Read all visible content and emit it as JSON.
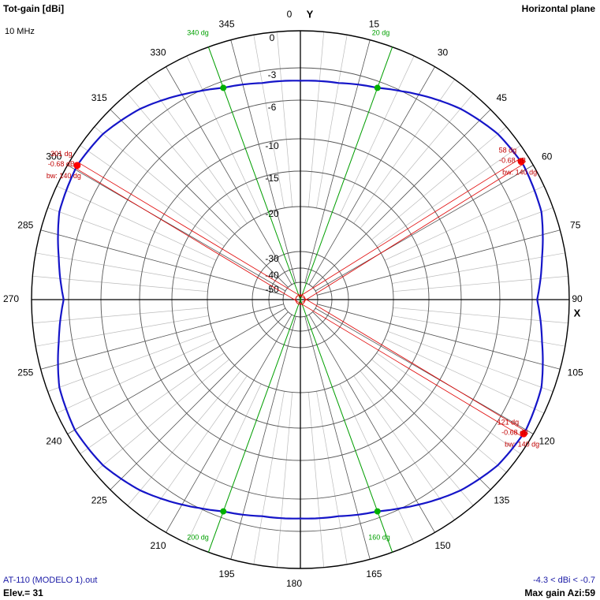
{
  "header": {
    "left_title": "Tot-gain [dBi]",
    "frequency": "10 MHz",
    "right_title": "Horizontal plane"
  },
  "footer": {
    "file": "AT-110 (MODELO 1).out",
    "elevation": "Elev.= 31",
    "range": "-4.3 < dBi < -0.7",
    "max_gain": "Max gain Azi:59"
  },
  "colors": {
    "pattern": "#1515c8",
    "lobe_lines": "#e00000",
    "beamwidth_lines": "#00a000",
    "grid": "#555555",
    "grid_light": "#bbbbbb"
  },
  "chart_data": {
    "type": "polar",
    "title": "Tot-gain [dBi]",
    "axis_labels": {
      "y": "Y",
      "x": "X"
    },
    "azimuth_ticks": [
      "0",
      "15",
      "30",
      "45",
      "60",
      "75",
      "90",
      "105",
      "120",
      "135",
      "150",
      "165",
      "180",
      "195",
      "210",
      "225",
      "240",
      "255",
      "270",
      "285",
      "300",
      "315",
      "330",
      "345"
    ],
    "radial_ticks": [
      "0",
      "-3",
      "-6",
      "-10",
      "-15",
      "-20",
      "-30",
      "-40",
      "-50"
    ],
    "radial_values": [
      0,
      -3,
      -6,
      -10,
      -15,
      -20,
      -30,
      -40,
      -50
    ],
    "series": [
      {
        "azimuth_deg": [
          0,
          10,
          20,
          30,
          40,
          50,
          59,
          70,
          80,
          90,
          100,
          110,
          120,
          130,
          140,
          150,
          160,
          170,
          180,
          190,
          200,
          210,
          220,
          230,
          240,
          250,
          260,
          270,
          280,
          290,
          301,
          310,
          320,
          330,
          340,
          350
        ],
        "gain_dbi": [
          -4.2,
          -4.1,
          -3.6,
          -2.6,
          -1.6,
          -0.9,
          -0.68,
          -1.0,
          -1.9,
          -2.6,
          -1.9,
          -1.0,
          -0.68,
          -0.9,
          -1.6,
          -2.6,
          -3.6,
          -4.1,
          -4.2,
          -4.1,
          -3.6,
          -2.6,
          -1.6,
          -0.9,
          -0.68,
          -1.0,
          -1.9,
          -2.6,
          -1.9,
          -1.0,
          -0.68,
          -0.9,
          -1.6,
          -2.6,
          -3.6,
          -4.1
        ]
      }
    ],
    "lobes": [
      {
        "azimuth": 58,
        "azimuth_label": "58 dg",
        "gain_label": "-0.68 dB",
        "bw_label": "bw: 140 dg"
      },
      {
        "azimuth": 121,
        "azimuth_label": "121 dg",
        "gain_label": "-0.68 dB",
        "bw_label": "bw: 140 dg"
      },
      {
        "azimuth": 301,
        "azimuth_label": "301 dg",
        "gain_label": "-0.68 dB",
        "bw_label": "bw: 140 dg"
      }
    ],
    "beamwidth_markers": [
      {
        "azimuth": 20,
        "label": "20 dg"
      },
      {
        "azimuth": 160,
        "label": "160 dg"
      },
      {
        "azimuth": 200,
        "label": "200 dg"
      },
      {
        "azimuth": 340,
        "label": "340 dg"
      }
    ]
  }
}
